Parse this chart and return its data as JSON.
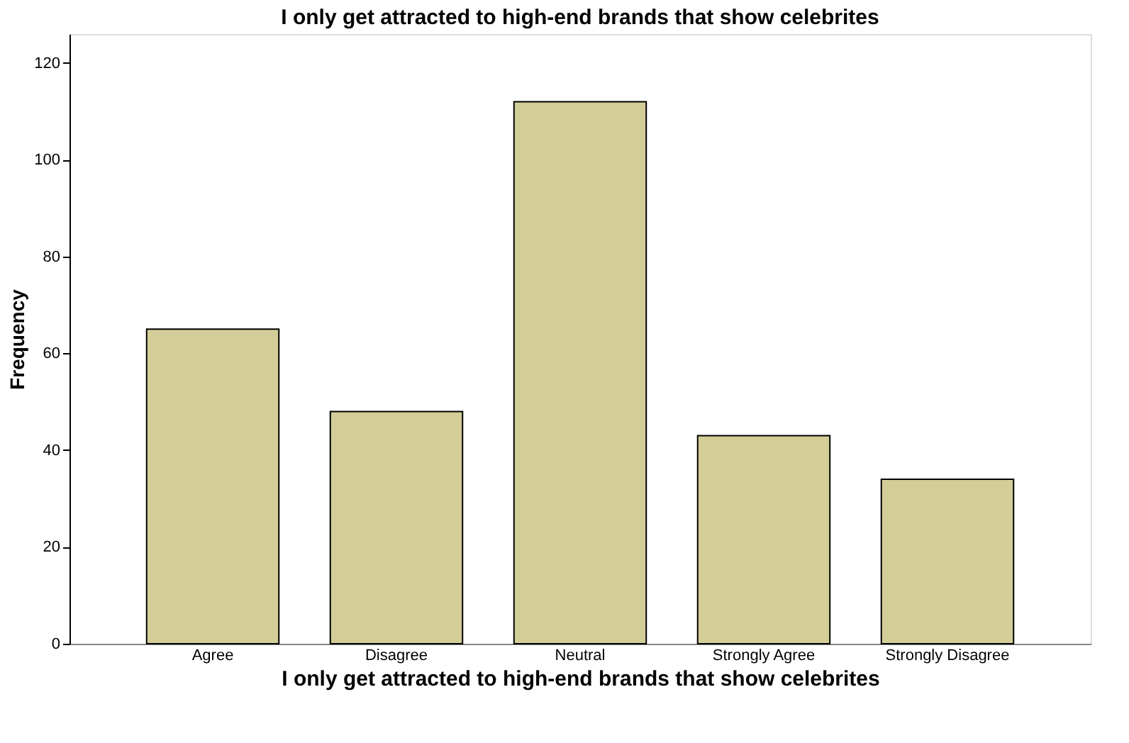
{
  "chart_data": {
    "type": "bar",
    "title": "I only get attracted to high-end brands that show celebrites",
    "xlabel": "I only get attracted to high-end brands that show celebrites",
    "ylabel": "Frequency",
    "categories": [
      "Agree",
      "Disagree",
      "Neutral",
      "Strongly Agree",
      "Strongly Disagree"
    ],
    "values": [
      65,
      48,
      112,
      43,
      34
    ],
    "color": "#d3ce98",
    "ylim": [
      0,
      126
    ],
    "yticks": [
      0,
      20,
      40,
      60,
      80,
      100,
      120
    ],
    "grid": false
  }
}
